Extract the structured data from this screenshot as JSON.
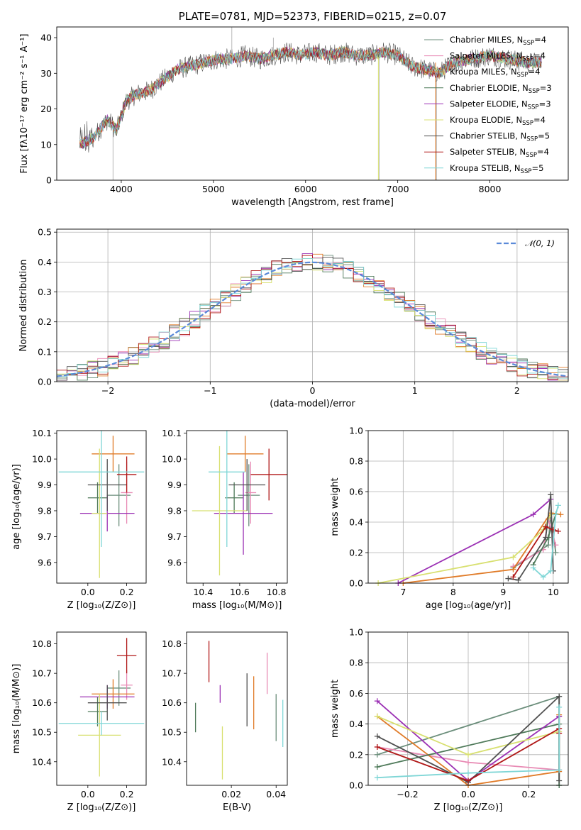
{
  "figure": {
    "title": "PLATE=0781, MJD=52373, FIBERID=0215, z=0.07"
  },
  "model_colors": [
    "#6b8e7b",
    "#e88ab4",
    "#e07b28",
    "#4f7a5a",
    "#9b30b4",
    "#d8e070",
    "#505050",
    "#b01818",
    "#7fd6d6"
  ],
  "chart_data": [
    {
      "id": "spectrum",
      "type": "line",
      "title": "PLATE=0781, MJD=52373, FIBERID=0215, z=0.07",
      "xlabel": "wavelength [Angstrom, rest frame]",
      "ylabel": "Flux [fλ10⁻¹⁷ erg cm⁻² s⁻¹ A⁻¹]",
      "xlim": [
        3300,
        8850
      ],
      "ylim": [
        0,
        43
      ],
      "xticks": [
        4000,
        5000,
        6000,
        7000,
        8000
      ],
      "yticks": [
        0,
        10,
        20,
        30,
        40
      ],
      "grid": false,
      "legend_position": "top-right",
      "continuum": {
        "x": [
          3550,
          3700,
          3850,
          3950,
          4050,
          4150,
          4300,
          4400,
          4500,
          4600,
          4750,
          4900,
          5050,
          5200,
          5350,
          5500,
          5650,
          5800,
          5950,
          6100,
          6250,
          6400,
          6550,
          6700,
          6850,
          7000,
          7150,
          7300,
          7450,
          7600,
          7800,
          8000,
          8200,
          8400,
          8550
        ],
        "y": [
          10,
          12,
          17,
          14,
          22,
          24,
          25,
          27,
          29,
          31,
          32,
          33,
          34,
          34,
          35,
          34,
          35,
          36,
          35,
          36,
          35,
          36,
          35,
          35,
          36,
          35,
          32,
          31,
          30,
          33,
          34,
          35,
          34,
          33,
          33
        ]
      },
      "series": [
        {
          "name": "Chabrier MILES, N_SSP=4",
          "label_main": "Chabrier MILES, N",
          "label_sub": "SSP",
          "label_tail": "=4"
        },
        {
          "name": "Salpeter MILES, N_SSP=4",
          "label_main": "Salpeter MILES, N",
          "label_sub": "SSP",
          "label_tail": "=4"
        },
        {
          "name": "Kroupa MILES, N_SSP=4",
          "label_main": "Kroupa MILES, N",
          "label_sub": "SSP",
          "label_tail": "=4"
        },
        {
          "name": "Chabrier ELODIE, N_SSP=3",
          "label_main": "Chabrier ELODIE, N",
          "label_sub": "SSP",
          "label_tail": "=3"
        },
        {
          "name": "Salpeter ELODIE, N_SSP=3",
          "label_main": "Salpeter ELODIE, N",
          "label_sub": "SSP",
          "label_tail": "=3"
        },
        {
          "name": "Kroupa ELODIE, N_SSP=4",
          "label_main": "Kroupa ELODIE, N",
          "label_sub": "SSP",
          "label_tail": "=4"
        },
        {
          "name": "Chabrier STELIB, N_SSP=5",
          "label_main": "Chabrier STELIB, N",
          "label_sub": "SSP",
          "label_tail": "=5"
        },
        {
          "name": "Salpeter STELIB, N_SSP=4",
          "label_main": "Salpeter STELIB, N",
          "label_sub": "SSP",
          "label_tail": "=4"
        },
        {
          "name": "Kroupa STELIB, N_SSP=5",
          "label_main": "Kroupa STELIB, N",
          "label_sub": "SSP",
          "label_tail": "=5"
        }
      ]
    },
    {
      "id": "residual-histogram",
      "type": "line",
      "xlabel": "(data-model)/error",
      "ylabel": "Normed distribution",
      "xlim": [
        -2.5,
        2.5
      ],
      "ylim": [
        0,
        0.51
      ],
      "xticks": [
        -2,
        -1,
        0,
        1,
        2
      ],
      "xticklabels": [
        "−2",
        "−1",
        "0",
        "1",
        "2"
      ],
      "yticks": [
        0,
        0.1,
        0.2,
        0.3,
        0.4,
        0.5
      ],
      "yticklabels": [
        "0.0",
        "0.1",
        "0.2",
        "0.3",
        "0.4",
        "0.5"
      ],
      "grid": true,
      "bin_width": 0.1,
      "reference_curve": {
        "name": "𝒩(0, 1)",
        "mean": 0,
        "sigma": 1
      },
      "legend_position": "top-right"
    },
    {
      "id": "age-vs-Z",
      "type": "scatter",
      "xlabel": "Z [log₁₀(Z/Z⊙)]",
      "ylabel": "age  [log₁₀(age/yr)]",
      "xlim": [
        -0.16,
        0.3
      ],
      "ylim": [
        9.52,
        10.11
      ],
      "xticks": [
        0.0,
        0.2
      ],
      "xticklabels": [
        "0.0",
        "0.2"
      ],
      "yticks": [
        9.6,
        9.7,
        9.8,
        9.9,
        10.0,
        10.1
      ],
      "yticklabels": [
        "9.6",
        "9.7",
        "9.8",
        "9.9",
        "10.0",
        "10.1"
      ],
      "grid": false,
      "points": [
        {
          "x": 0.16,
          "y": 9.86,
          "xerr": 0.06,
          "yerr": 0.12
        },
        {
          "x": 0.2,
          "y": 9.87,
          "xerr": 0.03,
          "yerr": 0.12
        },
        {
          "x": 0.13,
          "y": 10.02,
          "xerr": 0.11,
          "yerr": 0.07
        },
        {
          "x": 0.05,
          "y": 9.85,
          "xerr": 0.05,
          "yerr": 0.06
        },
        {
          "x": 0.1,
          "y": 9.79,
          "xerr": 0.14,
          "yerr": 0.07
        },
        {
          "x": 0.06,
          "y": 9.79,
          "xerr": 0.04,
          "yerr": 0.25
        },
        {
          "x": 0.1,
          "y": 9.9,
          "xerr": 0.1,
          "yerr": 0.1
        },
        {
          "x": 0.2,
          "y": 9.94,
          "xerr": 0.05,
          "yerr": 0.07
        },
        {
          "x": 0.07,
          "y": 9.95,
          "xerr": 0.22,
          "yerr": 0.29
        }
      ]
    },
    {
      "id": "age-vs-mass",
      "type": "scatter",
      "xlabel": "mass [log₁₀(M/M⊙)]",
      "ylabel": "",
      "xlim": [
        10.31,
        10.86
      ],
      "ylim": [
        9.52,
        10.11
      ],
      "xticks": [
        10.4,
        10.6,
        10.8
      ],
      "xticklabels": [
        "10.4",
        "10.6",
        "10.8"
      ],
      "yticks": [
        9.6,
        9.7,
        9.8,
        9.9,
        10.0,
        10.1
      ],
      "yticklabels": [
        "9.6",
        "9.7",
        "9.8",
        "9.9",
        "10.0",
        "10.1"
      ],
      "grid": false,
      "points": [
        {
          "x": 10.65,
          "y": 9.86,
          "xerr": 0.06,
          "yerr": 0.12
        },
        {
          "x": 10.66,
          "y": 9.87,
          "xerr": 0.03,
          "yerr": 0.12
        },
        {
          "x": 10.63,
          "y": 10.02,
          "xerr": 0.1,
          "yerr": 0.07
        },
        {
          "x": 10.57,
          "y": 9.85,
          "xerr": 0.05,
          "yerr": 0.06
        },
        {
          "x": 10.62,
          "y": 9.79,
          "xerr": 0.16,
          "yerr": 0.16
        },
        {
          "x": 10.49,
          "y": 9.8,
          "xerr": 0.15,
          "yerr": 0.25
        },
        {
          "x": 10.64,
          "y": 9.9,
          "xerr": 0.1,
          "yerr": 0.1
        },
        {
          "x": 10.76,
          "y": 9.94,
          "xerr": 0.1,
          "yerr": 0.1
        },
        {
          "x": 10.53,
          "y": 9.95,
          "xerr": 0.1,
          "yerr": 0.29
        }
      ]
    },
    {
      "id": "mass-weight-vs-age",
      "type": "line",
      "xlabel": "age  [log₁₀(age/yr)]",
      "ylabel": "mass weight",
      "xlim": [
        6.3,
        10.3
      ],
      "ylim": [
        0,
        1.0
      ],
      "xticks": [
        7,
        8,
        9,
        10
      ],
      "xticklabels": [
        "7",
        "8",
        "9",
        "10"
      ],
      "yticks": [
        0,
        0.2,
        0.4,
        0.6,
        0.8,
        1.0
      ],
      "yticklabels": [
        "0.0",
        "0.2",
        "0.4",
        "0.6",
        "0.8",
        "1.0"
      ],
      "grid": true,
      "series": [
        {
          "x": [
            9.2,
            9.9,
            9.95,
            10.05
          ],
          "y": [
            0.1,
            0.25,
            0.45,
            0.2
          ]
        },
        {
          "x": [
            9.2,
            9.8,
            9.9,
            10.05
          ],
          "y": [
            0.11,
            0.22,
            0.42,
            0.25
          ]
        },
        {
          "x": [
            7.0,
            9.2,
            9.95,
            10.15
          ],
          "y": [
            0.0,
            0.09,
            0.46,
            0.45
          ]
        },
        {
          "x": [
            9.6,
            9.9,
            10.05
          ],
          "y": [
            0.12,
            0.3,
            0.45
          ]
        },
        {
          "x": [
            6.9,
            9.6,
            9.95
          ],
          "y": [
            0.0,
            0.45,
            0.55
          ]
        },
        {
          "x": [
            6.5,
            9.2,
            9.8,
            9.95
          ],
          "y": [
            0.0,
            0.17,
            0.35,
            0.45
          ]
        },
        {
          "x": [
            9.1,
            9.3,
            9.85,
            9.95,
            10.0
          ],
          "y": [
            0.03,
            0.02,
            0.3,
            0.58,
            0.08
          ]
        },
        {
          "x": [
            9.2,
            9.85,
            10.0,
            10.1
          ],
          "y": [
            0.04,
            0.37,
            0.35,
            0.34
          ]
        },
        {
          "x": [
            9.6,
            9.8,
            9.95,
            10.05,
            10.1
          ],
          "y": [
            0.1,
            0.04,
            0.08,
            0.45,
            0.51
          ]
        }
      ]
    },
    {
      "id": "mass-vs-Z",
      "type": "scatter",
      "xlabel": "Z [log₁₀(Z/Z⊙)]",
      "ylabel": "mass [log₁₀(M/M⊙)]",
      "xlim": [
        -0.16,
        0.3
      ],
      "ylim": [
        10.32,
        10.84
      ],
      "xticks": [
        0.0,
        0.2
      ],
      "xticklabels": [
        "0.0",
        "0.2"
      ],
      "yticks": [
        10.4,
        10.5,
        10.6,
        10.7,
        10.8
      ],
      "yticklabels": [
        "10.4",
        "10.5",
        "10.6",
        "10.7",
        "10.8"
      ],
      "grid": false,
      "points": [
        {
          "x": 0.16,
          "y": 10.65,
          "xerr": 0.06,
          "yerr": 0.06
        },
        {
          "x": 0.2,
          "y": 10.66,
          "xerr": 0.03,
          "yerr": 0.05
        },
        {
          "x": 0.13,
          "y": 10.63,
          "xerr": 0.11,
          "yerr": 0.05
        },
        {
          "x": 0.05,
          "y": 10.57,
          "xerr": 0.05,
          "yerr": 0.05
        },
        {
          "x": 0.1,
          "y": 10.62,
          "xerr": 0.14,
          "yerr": 0.04
        },
        {
          "x": 0.06,
          "y": 10.49,
          "xerr": 0.11,
          "yerr": 0.14
        },
        {
          "x": 0.1,
          "y": 10.6,
          "xerr": 0.1,
          "yerr": 0.06
        },
        {
          "x": 0.2,
          "y": 10.76,
          "xerr": 0.05,
          "yerr": 0.06
        },
        {
          "x": 0.07,
          "y": 10.53,
          "xerr": 0.22,
          "yerr": 0.04
        }
      ]
    },
    {
      "id": "mass-vs-EBV",
      "type": "scatter",
      "xlabel": "E(B-V)",
      "ylabel": "",
      "xlim": [
        0.0,
        0.045
      ],
      "ylim": [
        10.32,
        10.84
      ],
      "xticks": [
        0.02,
        0.04
      ],
      "xticklabels": [
        "0.02",
        "0.04"
      ],
      "yticks": [
        10.4,
        10.5,
        10.6,
        10.7,
        10.8
      ],
      "yticklabels": [
        "10.4",
        "10.5",
        "10.6",
        "10.7",
        "10.8"
      ],
      "grid": false,
      "points": [
        {
          "x": 0.04,
          "y": 10.55,
          "xerr": 0,
          "yerr": 0.08
        },
        {
          "x": 0.036,
          "y": 10.7,
          "xerr": 0,
          "yerr": 0.07
        },
        {
          "x": 0.03,
          "y": 10.6,
          "xerr": 0,
          "yerr": 0.09
        },
        {
          "x": 0.004,
          "y": 10.55,
          "xerr": 0,
          "yerr": 0.05
        },
        {
          "x": 0.015,
          "y": 10.63,
          "xerr": 0,
          "yerr": 0.03
        },
        {
          "x": 0.016,
          "y": 10.43,
          "xerr": 0,
          "yerr": 0.09
        },
        {
          "x": 0.027,
          "y": 10.61,
          "xerr": 0,
          "yerr": 0.09
        },
        {
          "x": 0.01,
          "y": 10.74,
          "xerr": 0,
          "yerr": 0.07
        },
        {
          "x": 0.043,
          "y": 10.53,
          "xerr": 0,
          "yerr": 0.08
        }
      ]
    },
    {
      "id": "mass-weight-vs-Z",
      "type": "line",
      "xlabel": "Z [log₁₀(Z/Z⊙)]",
      "ylabel": "mass weight",
      "xlim": [
        -0.33,
        0.33
      ],
      "ylim": [
        0,
        1.0
      ],
      "xticks": [
        -0.2,
        0.0,
        0.2
      ],
      "xticklabels": [
        "−0.2",
        "0.0",
        "0.2"
      ],
      "yticks": [
        0,
        0.2,
        0.4,
        0.6,
        0.8,
        1.0
      ],
      "yticklabels": [
        "0.0",
        "0.2",
        "0.4",
        "0.6",
        "0.8",
        "1.0"
      ],
      "grid": true,
      "series": [
        {
          "x": [
            -0.3,
            0.3,
            0.3
          ],
          "y": [
            0.2,
            0.58,
            0.0
          ]
        },
        {
          "x": [
            -0.3,
            0.0,
            0.3,
            0.3
          ],
          "y": [
            0.25,
            0.15,
            0.1,
            0.45
          ]
        },
        {
          "x": [
            -0.3,
            0.0,
            0.3,
            0.3
          ],
          "y": [
            0.45,
            0.0,
            0.09,
            0.46
          ]
        },
        {
          "x": [
            -0.3,
            0.3,
            0.3
          ],
          "y": [
            0.12,
            0.4,
            0.0
          ]
        },
        {
          "x": [
            -0.3,
            0.0,
            0.3
          ],
          "y": [
            0.55,
            0.03,
            0.45
          ]
        },
        {
          "x": [
            -0.3,
            0.0,
            0.3
          ],
          "y": [
            0.45,
            0.2,
            0.35
          ]
        },
        {
          "x": [
            -0.3,
            0.0,
            0.3,
            0.3
          ],
          "y": [
            0.32,
            0.02,
            0.58,
            0.03
          ]
        },
        {
          "x": [
            -0.3,
            0.0,
            0.3,
            0.3
          ],
          "y": [
            0.25,
            0.03,
            0.37,
            0.34
          ]
        },
        {
          "x": [
            -0.3,
            0.0,
            0.3,
            0.3
          ],
          "y": [
            0.05,
            0.08,
            0.1,
            0.51
          ]
        }
      ]
    }
  ]
}
